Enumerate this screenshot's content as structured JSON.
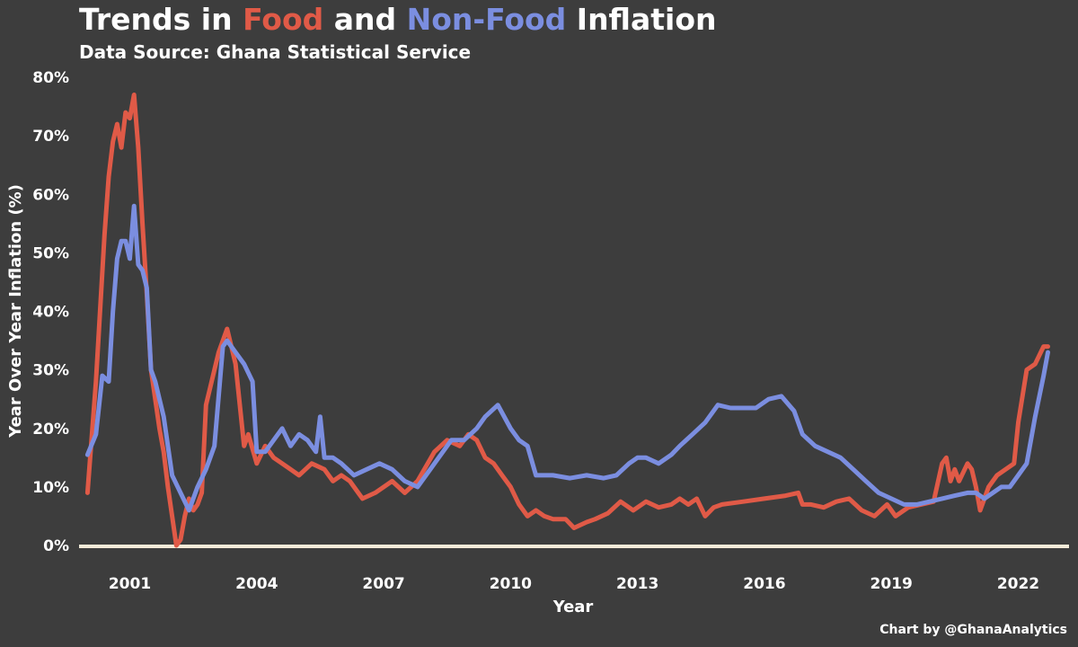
{
  "title": {
    "prefix": "Trends in ",
    "food": "Food",
    "middle": " and ",
    "nonfood": "Non-Food",
    "suffix": " Inflation"
  },
  "subtitle": "Data Source: Ghana Statistical Service",
  "credit": "Chart by @GhanaAnalytics",
  "colors": {
    "background": "#3d3d3d",
    "food": "#e05a47",
    "nonfood": "#7b8ee0",
    "baseline": "#f3ead8"
  },
  "chart_data": {
    "type": "line",
    "xlabel": "Year",
    "ylabel": "Year Over Year Inflation (%)",
    "xlim": [
      1999.8,
      2023.2
    ],
    "ylim": [
      0,
      80
    ],
    "x_ticks": [
      2001,
      2004,
      2007,
      2010,
      2013,
      2016,
      2019,
      2022
    ],
    "y_ticks": [
      0,
      10,
      20,
      30,
      40,
      50,
      60,
      70,
      80
    ],
    "y_tick_labels": [
      "0%",
      "10%",
      "20%",
      "30%",
      "40%",
      "50%",
      "60%",
      "70%",
      "80%"
    ],
    "grid": false,
    "legend": "none (series named by colored words in title)",
    "series": [
      {
        "name": "Food",
        "color": "#e05a47",
        "x": [
          2000.0,
          2000.2,
          2000.4,
          2000.5,
          2000.6,
          2000.7,
          2000.8,
          2000.9,
          2001.0,
          2001.1,
          2001.2,
          2001.3,
          2001.4,
          2001.5,
          2001.6,
          2001.7,
          2001.8,
          2001.9,
          2002.0,
          2002.1,
          2002.2,
          2002.3,
          2002.4,
          2002.5,
          2002.6,
          2002.7,
          2002.8,
          2002.9,
          2003.0,
          2003.1,
          2003.3,
          2003.5,
          2003.7,
          2003.8,
          2004.0,
          2004.2,
          2004.4,
          2004.6,
          2004.8,
          2005.0,
          2005.3,
          2005.6,
          2005.8,
          2006.0,
          2006.2,
          2006.5,
          2006.8,
          2007.0,
          2007.2,
          2007.5,
          2007.8,
          2008.2,
          2008.5,
          2008.8,
          2009.0,
          2009.2,
          2009.4,
          2009.6,
          2009.8,
          2010.0,
          2010.2,
          2010.4,
          2010.6,
          2010.8,
          2011.0,
          2011.3,
          2011.5,
          2011.8,
          2012.0,
          2012.3,
          2012.6,
          2012.9,
          2013.2,
          2013.5,
          2013.8,
          2014.0,
          2014.2,
          2014.4,
          2014.6,
          2014.8,
          2015.0,
          2015.5,
          2016.0,
          2016.5,
          2016.8,
          2016.9,
          2017.1,
          2017.4,
          2017.7,
          2018.0,
          2018.3,
          2018.6,
          2018.9,
          2019.1,
          2019.4,
          2019.7,
          2020.0,
          2020.2,
          2020.3,
          2020.4,
          2020.5,
          2020.6,
          2020.8,
          2020.9,
          2021.0,
          2021.1,
          2021.3,
          2021.5,
          2021.7,
          2021.9,
          2022.0,
          2022.2,
          2022.4,
          2022.6,
          2022.7
        ],
        "values": [
          9,
          28,
          53,
          63,
          69,
          72,
          68,
          74,
          73,
          77,
          68,
          55,
          43,
          30,
          25,
          20,
          16,
          10,
          5,
          0,
          1,
          5,
          8,
          6,
          7,
          9,
          24,
          27,
          30,
          33,
          37,
          31,
          17,
          19,
          14,
          17,
          15,
          14,
          13,
          12,
          14,
          13,
          11,
          12,
          11,
          8,
          9,
          10,
          11,
          9,
          11,
          16,
          18,
          17,
          19,
          18,
          15,
          14,
          12,
          10,
          7,
          5,
          6,
          5,
          4.5,
          4.5,
          3,
          4,
          4.5,
          5.5,
          7.5,
          6,
          7.5,
          6.5,
          7,
          8,
          7,
          8,
          5,
          6.5,
          7,
          7.5,
          8,
          8.5,
          9,
          7,
          7,
          6.5,
          7.5,
          8,
          6,
          5,
          7,
          5,
          6.5,
          7,
          7.5,
          14,
          15,
          11,
          13,
          11,
          14,
          13,
          10,
          6,
          10,
          12,
          13,
          14,
          21,
          30,
          31,
          34,
          34
        ]
      },
      {
        "name": "Non-Food",
        "color": "#7b8ee0",
        "x": [
          2000.0,
          2000.2,
          2000.35,
          2000.5,
          2000.6,
          2000.7,
          2000.8,
          2000.9,
          2001.0,
          2001.1,
          2001.2,
          2001.3,
          2001.4,
          2001.5,
          2001.6,
          2001.7,
          2001.8,
          2002.0,
          2002.2,
          2002.4,
          2002.6,
          2002.8,
          2003.0,
          2003.2,
          2003.3,
          2003.5,
          2003.7,
          2003.9,
          2004.0,
          2004.2,
          2004.4,
          2004.6,
          2004.8,
          2005.0,
          2005.2,
          2005.4,
          2005.5,
          2005.6,
          2005.8,
          2006.0,
          2006.3,
          2006.6,
          2006.9,
          2007.2,
          2007.5,
          2007.8,
          2008.0,
          2008.3,
          2008.6,
          2008.9,
          2009.2,
          2009.4,
          2009.7,
          2010.0,
          2010.2,
          2010.4,
          2010.6,
          2011.0,
          2011.4,
          2011.8,
          2012.2,
          2012.5,
          2012.8,
          2013.0,
          2013.2,
          2013.5,
          2013.8,
          2014.0,
          2014.3,
          2014.6,
          2014.9,
          2015.2,
          2015.5,
          2015.8,
          2016.1,
          2016.4,
          2016.7,
          2016.9,
          2017.2,
          2017.5,
          2017.8,
          2018.1,
          2018.4,
          2018.7,
          2019.0,
          2019.3,
          2019.6,
          2019.9,
          2020.2,
          2020.5,
          2020.8,
          2021.0,
          2021.2,
          2021.4,
          2021.6,
          2021.8,
          2022.0,
          2022.2,
          2022.4,
          2022.6,
          2022.7
        ],
        "values": [
          15.5,
          19,
          29,
          28,
          40,
          49,
          52,
          52,
          49,
          58,
          48,
          47,
          44,
          30,
          28,
          25,
          22,
          12,
          9,
          6,
          10,
          13,
          17,
          34,
          35,
          33,
          31,
          28,
          16,
          16,
          18,
          20,
          17,
          19,
          18,
          16,
          22,
          15,
          15,
          14,
          12,
          13,
          14,
          13,
          11,
          10,
          12,
          15,
          18,
          18,
          20,
          22,
          24,
          20,
          18,
          17,
          12,
          12,
          11.5,
          12,
          11.5,
          12,
          14,
          15,
          15,
          14,
          15.5,
          17,
          19,
          21,
          24,
          23.5,
          23.5,
          23.5,
          25,
          25.5,
          23,
          19,
          17,
          16,
          15,
          13,
          11,
          9,
          8,
          7,
          7,
          7.5,
          8,
          8.5,
          9,
          9,
          8,
          9,
          10,
          10,
          12,
          14,
          22,
          29,
          33
        ]
      }
    ]
  }
}
